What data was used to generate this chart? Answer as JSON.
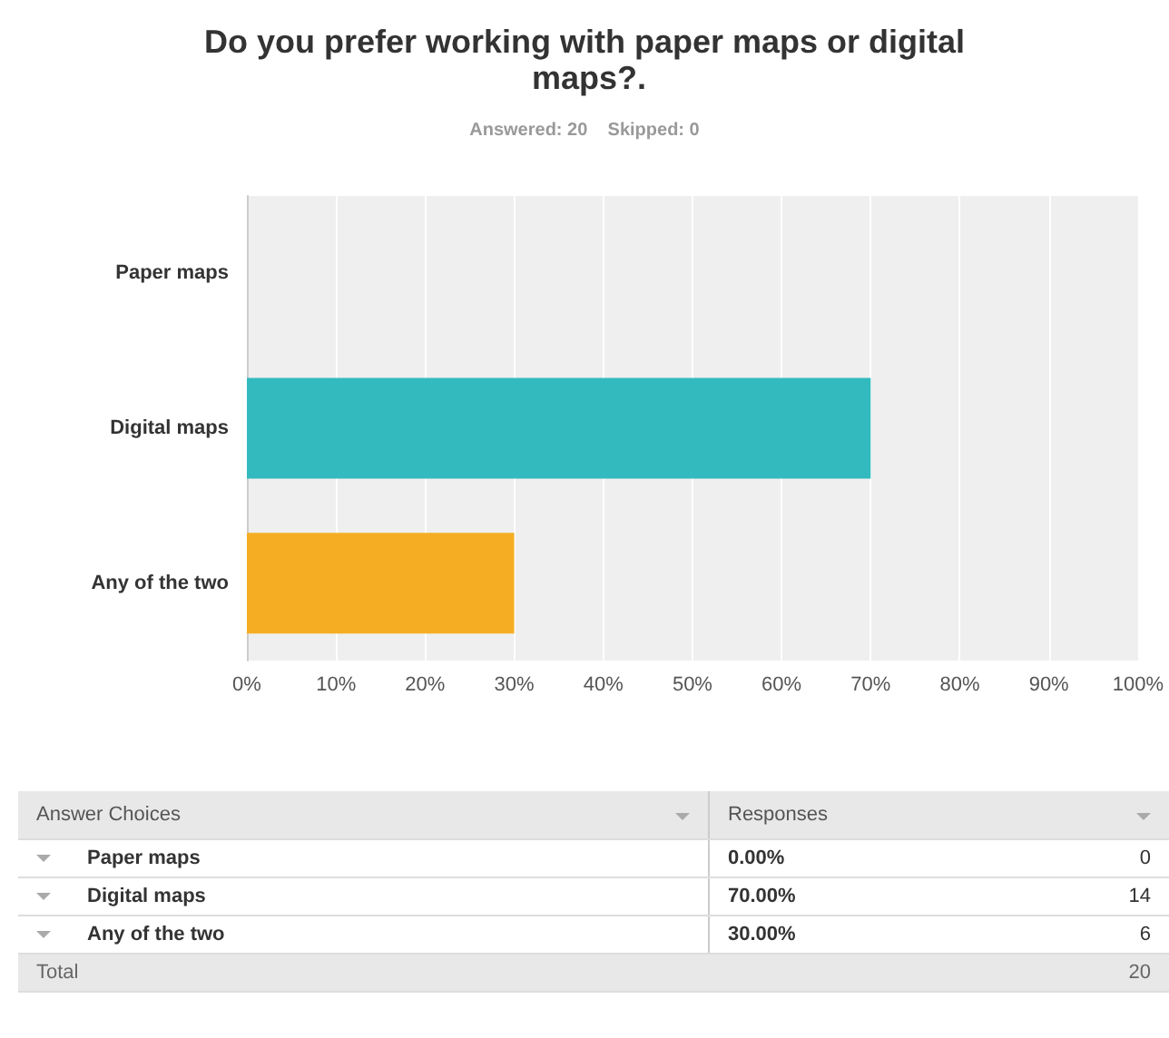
{
  "chart_data": {
    "type": "bar",
    "orientation": "horizontal",
    "title": "Do you prefer working with paper maps or digital maps?.",
    "subtitle": "Answered: 20    Skipped: 0",
    "categories": [
      "Paper maps",
      "Digital maps",
      "Any of the two"
    ],
    "values": [
      0,
      70,
      30
    ],
    "colors": [
      null,
      "#33babf",
      "#f5ae23"
    ],
    "xlim": [
      0,
      100
    ],
    "xticks": [
      {
        "value": 0,
        "label": "0%"
      },
      {
        "value": 10,
        "label": "10%"
      },
      {
        "value": 20,
        "label": "20%"
      },
      {
        "value": 30,
        "label": "30%"
      },
      {
        "value": 40,
        "label": "40%"
      },
      {
        "value": 50,
        "label": "50%"
      },
      {
        "value": 60,
        "label": "60%"
      },
      {
        "value": 70,
        "label": "70%"
      },
      {
        "value": 80,
        "label": "80%"
      },
      {
        "value": 90,
        "label": "90%"
      },
      {
        "value": 100,
        "label": "100%"
      }
    ],
    "grid": "x",
    "annotations": [
      "Answer Choices",
      "Responses",
      "0.00%",
      "0",
      "70.00%",
      "14",
      "30.00%",
      "6",
      "Total",
      "20"
    ]
  }
}
